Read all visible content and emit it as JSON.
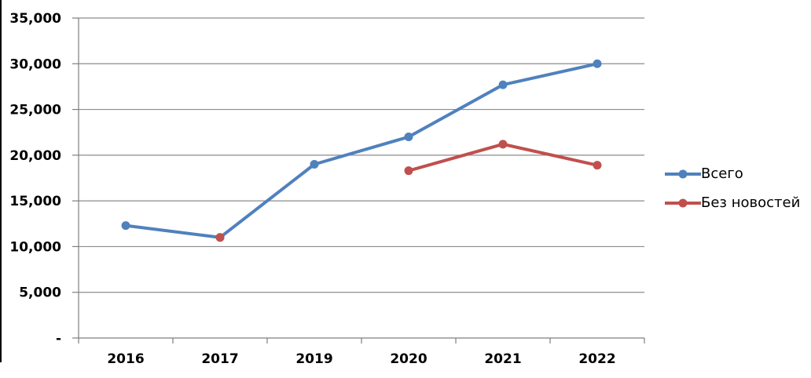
{
  "chart_data": {
    "type": "line",
    "title": "",
    "xlabel": "",
    "ylabel": "",
    "categories": [
      "2016",
      "2017",
      "2019",
      "2020",
      "2021",
      "2022"
    ],
    "series": [
      {
        "name": "Всего",
        "color": "#4F81BD",
        "values": [
          12300,
          11000,
          19000,
          22000,
          27700,
          30000
        ]
      },
      {
        "name": "Без новостей",
        "color": "#C0504D",
        "values": [
          null,
          11000,
          null,
          18300,
          21200,
          18900
        ]
      }
    ],
    "ylim": [
      0,
      35000
    ],
    "ytick_step": 5000,
    "ytick_labels": [
      "35,000",
      "30,000",
      "25,000",
      "20,000",
      "15,000",
      "10,000",
      "5,000",
      "-"
    ],
    "grid": true,
    "legend_position": "right",
    "gridline_color": "#8C8C8C",
    "axis_color": "#7F7F7F",
    "label_color": "#000000"
  },
  "decor": {
    "left_edge_line_color": "#000000"
  }
}
